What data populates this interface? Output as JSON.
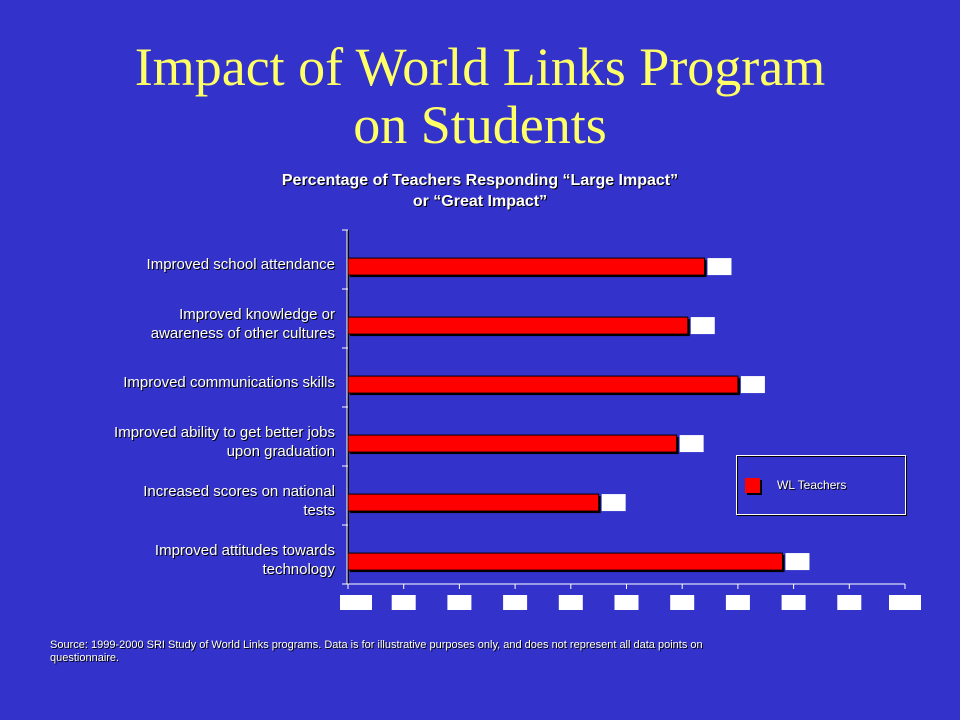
{
  "slide": {
    "title_line1": "Impact of World Links Program",
    "title_line2": "on Students"
  },
  "chart_data": {
    "type": "bar",
    "orientation": "horizontal",
    "title_line1": "Percentage of Teachers Responding “Large Impact”",
    "title_line2": "or “Great Impact”",
    "categories": [
      [
        "Improved school attendance"
      ],
      [
        "Improved knowledge or",
        "awareness of other cultures"
      ],
      [
        "Improved communications skills"
      ],
      [
        "Improved ability to get better jobs",
        "upon graduation"
      ],
      [
        "Increased scores on national",
        "tests"
      ],
      [
        "Improved attitudes towards",
        "technology"
      ]
    ],
    "series": [
      {
        "name": "WL Teachers",
        "values": [
          64,
          61,
          70,
          59,
          45,
          78
        ]
      }
    ],
    "xlim": [
      0,
      100
    ],
    "grid": false,
    "legend_position": "right",
    "colors": {
      "bar": "#ff0000",
      "background": "#3333cc",
      "axis": "#ffffff"
    }
  },
  "source_line1": "Source: 1999-2000 SRI Study of World Links programs.  Data is for illustrative purposes only, and does not represent all data points on",
  "source_line2": "questionnaire."
}
